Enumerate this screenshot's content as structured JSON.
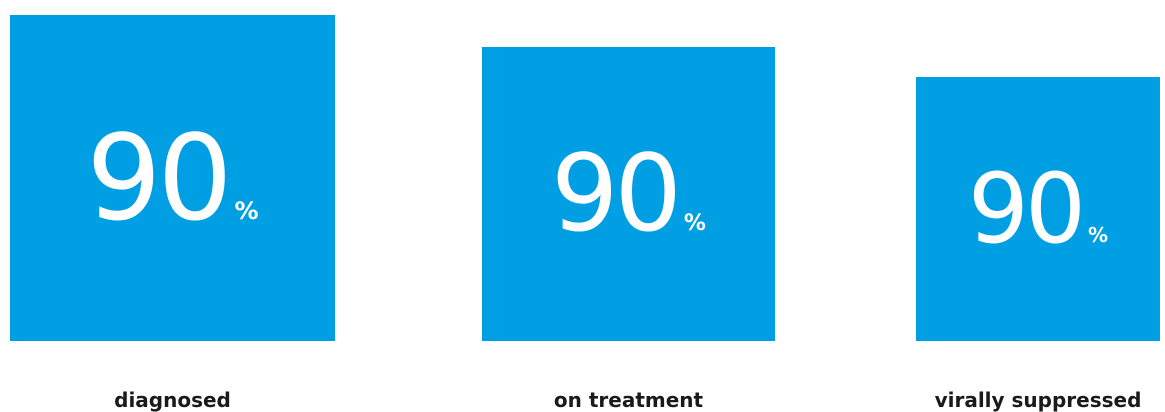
{
  "accent_color": "#009fe3",
  "text_color": "#1a1a1a",
  "targets": [
    {
      "value": "90",
      "unit": "%",
      "label": "diagnosed"
    },
    {
      "value": "90",
      "unit": "%",
      "label": "on treatment"
    },
    {
      "value": "90",
      "unit": "%",
      "label": "virally suppressed"
    }
  ]
}
